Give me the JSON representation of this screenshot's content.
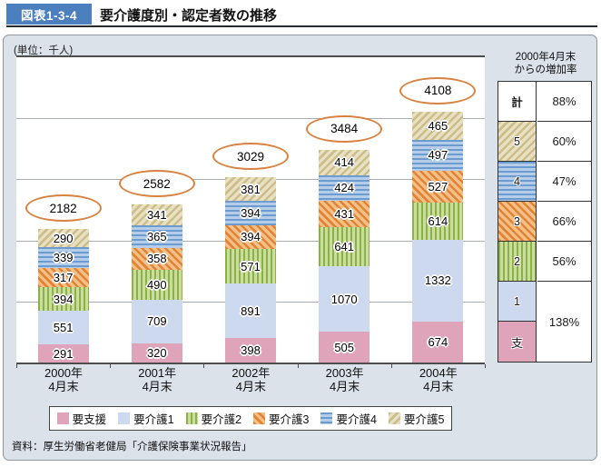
{
  "header": {
    "tag_label": "図表1-3-4",
    "title": "要介護度別・認定者数の推移"
  },
  "chart_data": {
    "type": "bar",
    "stacked": true,
    "unit_label": "(単位：千人)",
    "title": "要介護度別・認定者数の推移",
    "categories": [
      [
        "2000年",
        "4月末"
      ],
      [
        "2001年",
        "4月末"
      ],
      [
        "2002年",
        "4月末"
      ],
      [
        "2003年",
        "4月末"
      ],
      [
        "2004年",
        "4月末"
      ]
    ],
    "series": [
      {
        "key": "support",
        "name": "要支援",
        "pattern": "solid",
        "color": "#dfa3ba",
        "values": [
          291,
          320,
          398,
          505,
          674
        ]
      },
      {
        "key": "care1",
        "name": "要介護1",
        "pattern": "solid",
        "color": "#ccd9ee",
        "values": [
          551,
          709,
          891,
          1070,
          1332
        ]
      },
      {
        "key": "care2",
        "name": "要介護2",
        "pattern": "vertical-stripes",
        "color": "#8ab347",
        "color2": "#ccdc9e",
        "values": [
          394,
          490,
          571,
          641,
          614
        ]
      },
      {
        "key": "care3",
        "name": "要介護3",
        "pattern": "diagonal-stripes",
        "color": "#e28434",
        "color2": "#f4c08a",
        "values": [
          317,
          358,
          394,
          431,
          527
        ]
      },
      {
        "key": "care4",
        "name": "要介護4",
        "pattern": "horizontal-stripes",
        "color": "#6b9bcf",
        "color2": "#b5cde8",
        "values": [
          339,
          365,
          394,
          424,
          497
        ]
      },
      {
        "key": "care5",
        "name": "要介護5",
        "pattern": "diagonal-stripes-reverse",
        "color": "#cdbe88",
        "color2": "#e8e0c4",
        "values": [
          290,
          341,
          381,
          414,
          465
        ]
      }
    ],
    "totals": [
      2182,
      2582,
      3029,
      3484,
      4108
    ],
    "total_badge_border_color": "#d9823f",
    "ylim": [
      0,
      5000
    ],
    "gridline_step": 1000,
    "grid": true,
    "legend_position": "bottom"
  },
  "increase_table": {
    "title": [
      "2000年4月末",
      "からの増加率"
    ],
    "rows": [
      {
        "label": "計",
        "series_key": "total",
        "value": "88%"
      },
      {
        "label": "5",
        "series_key": "care5",
        "value": "60%"
      },
      {
        "label": "4",
        "series_key": "care4",
        "value": "47%"
      },
      {
        "label": "3",
        "series_key": "care3",
        "value": "66%"
      },
      {
        "label": "2",
        "series_key": "care2",
        "value": "56%"
      },
      {
        "label": "1",
        "series_key": "care1",
        "value": "138%",
        "value_rowspan": 2
      },
      {
        "label": "支",
        "series_key": "support"
      }
    ]
  },
  "source": "資料：厚生労働省老健局「介護保険事業状況報告」"
}
